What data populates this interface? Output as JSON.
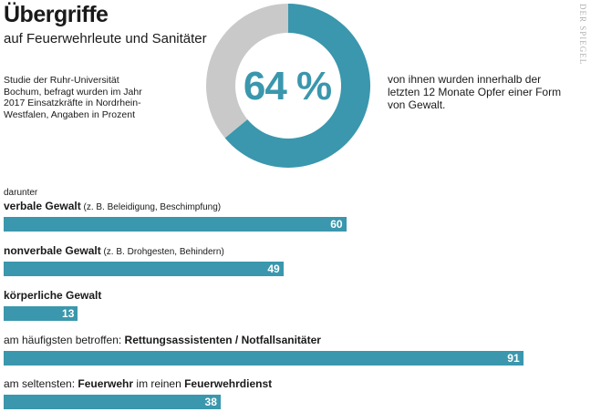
{
  "title": "Übergriffe",
  "subtitle": "auf Feuerwehrleute und Sanitäter",
  "study_note": "Studie der Ruhr-Universität Bochum, befragt wurden im Jahr 2017 Einsatzkräfte in Nordrhein-Westfalen, Angaben in Prozent",
  "source_watermark": "DER SPIEGEL",
  "donut": {
    "big_label": "64 %",
    "description": "von ihnen wurden innerhalb der letzten 12 Monate Opfer einer Form von Gewalt."
  },
  "darunter": "darunter",
  "colors": {
    "accent": "#3a97ad",
    "remainder": "#c9c9c9"
  },
  "chart_data": [
    {
      "type": "pie",
      "values": [
        64,
        36
      ],
      "max": 100
    },
    {
      "type": "bar",
      "orientation": "horizontal",
      "xlim": [
        0,
        100
      ],
      "bars": [
        {
          "label_pre": "",
          "label_strong": "verbale Gewalt",
          "label_mid": "",
          "label_strong2": "",
          "note": " (z. B. Beleidigung, Beschimpfung)",
          "value": 60
        },
        {
          "label_pre": "",
          "label_strong": "nonverbale Gewalt",
          "label_mid": "",
          "label_strong2": "",
          "note": " (z. B. Drohgesten, Behindern)",
          "value": 49
        },
        {
          "label_pre": "",
          "label_strong": "körperliche Gewalt",
          "label_mid": "",
          "label_strong2": "",
          "note": "",
          "value": 13
        },
        {
          "label_pre": "am häufigsten betroffen: ",
          "label_strong": "Rettungsassistenten / Notfallsanitäter",
          "label_mid": "",
          "label_strong2": "",
          "note": "",
          "value": 91
        },
        {
          "label_pre": "am seltensten: ",
          "label_strong": "Feuerwehr",
          "label_mid": " im reinen ",
          "label_strong2": "Feuerwehrdienst",
          "note": "",
          "value": 38
        }
      ]
    }
  ]
}
